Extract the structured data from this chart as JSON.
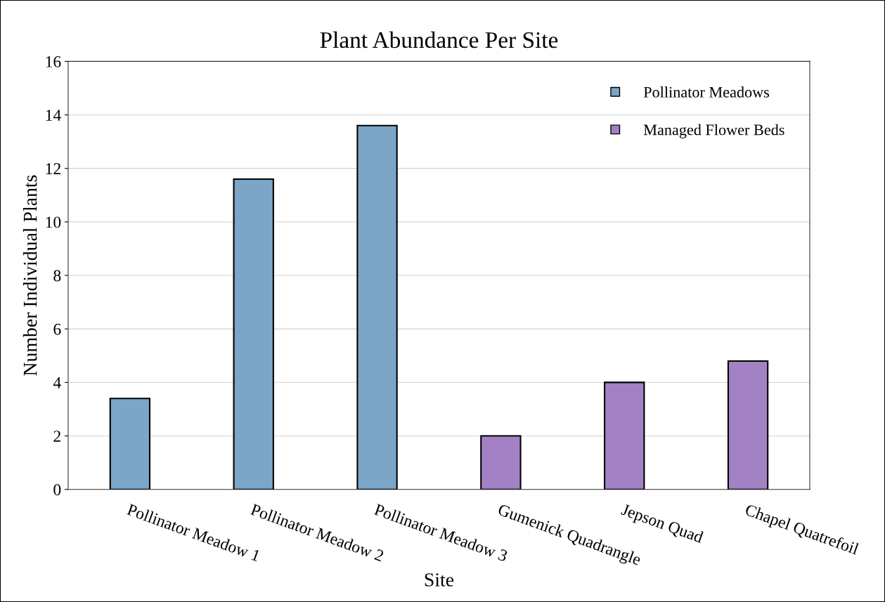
{
  "chart_data": {
    "type": "bar",
    "title": "Plant Abundance Per Site",
    "xlabel": "Site",
    "ylabel": "Number Individual Plants",
    "categories": [
      "Pollinator Meadow 1",
      "Pollinator Meadow 2",
      "Pollinator Meadow 3",
      "Gumenick Quadrangle",
      "Jepson Quad",
      "Chapel Quatrefoil"
    ],
    "series": [
      {
        "name": "Pollinator Meadows",
        "color": "#7ba6c8",
        "values": [
          3.4,
          11.6,
          13.6,
          null,
          null,
          null
        ]
      },
      {
        "name": "Managed Flower Beds",
        "color": "#a282c4",
        "values": [
          null,
          null,
          null,
          2.0,
          4.0,
          4.8
        ]
      }
    ],
    "ylim": [
      0,
      16
    ],
    "yticks": [
      0,
      2,
      4,
      6,
      8,
      10,
      12,
      14,
      16
    ],
    "grid": "y",
    "legend": "top right"
  }
}
